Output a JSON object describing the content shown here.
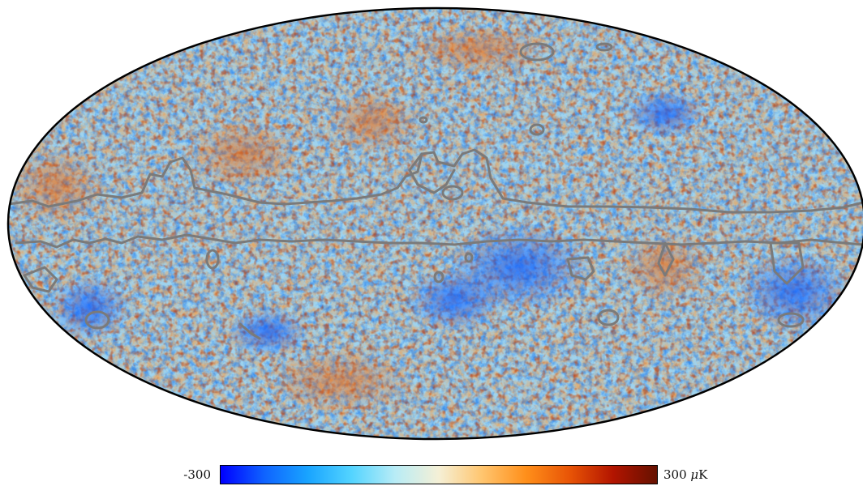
{
  "map": {
    "projection": "mollweide",
    "mask_contour_color": "#7a7a7a",
    "outline_color": "#000000"
  },
  "colorbar": {
    "min_label": "-300",
    "max_value": "300",
    "unit_greek": "μ",
    "unit_rest": "K",
    "colors": [
      "#0000ff",
      "#0f63ff",
      "#19a4ff",
      "#53d4ff",
      "#b8ecf6",
      "#f5f0d6",
      "#ffc56e",
      "#ff8f1a",
      "#e85406",
      "#b21400",
      "#651100"
    ]
  }
}
